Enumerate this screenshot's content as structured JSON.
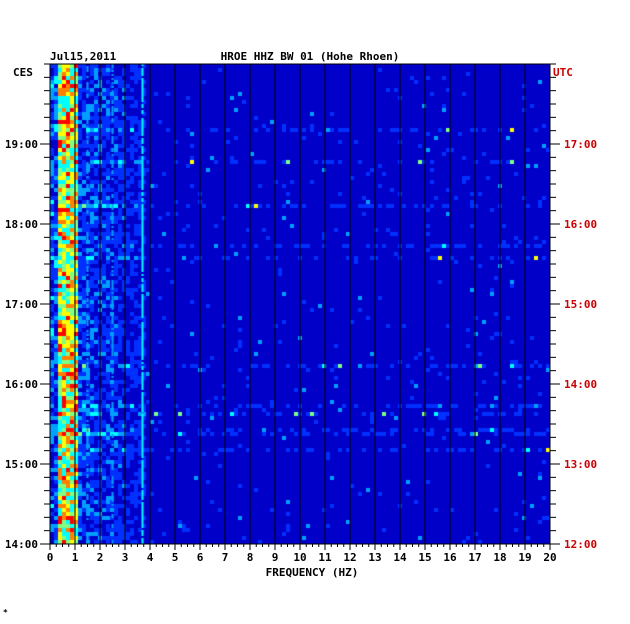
{
  "chart_data": {
    "type": "heatmap",
    "title": "HROE HHZ BW 01 (Hohe Rhoen)",
    "date": "Jul15,2011",
    "xlabel": "FREQUENCY (HZ)",
    "x_ticks": [
      "0",
      "1",
      "2",
      "3",
      "4",
      "5",
      "6",
      "7",
      "8",
      "9",
      "10",
      "11",
      "12",
      "13",
      "14",
      "15",
      "16",
      "17",
      "18",
      "19",
      "20"
    ],
    "xlim": [
      0,
      20
    ],
    "left_axis": {
      "label": "CES",
      "ticks": [
        {
          "label": "19:00",
          "time": 19
        },
        {
          "label": "18:00",
          "time": 18
        },
        {
          "label": "17:00",
          "time": 17
        },
        {
          "label": "16:00",
          "time": 16
        },
        {
          "label": "15:00",
          "time": 15
        },
        {
          "label": "14:00",
          "time": 14
        }
      ],
      "range": [
        14.0,
        20.0
      ]
    },
    "right_axis": {
      "label": "UTC",
      "ticks": [
        {
          "label": "17:00",
          "time": 17
        },
        {
          "label": "16:00",
          "time": 16
        },
        {
          "label": "15:00",
          "time": 15
        },
        {
          "label": "14:00",
          "time": 14
        },
        {
          "label": "13:00",
          "time": 13
        },
        {
          "label": "12:00",
          "time": 12
        }
      ],
      "range": [
        12.0,
        18.0
      ]
    },
    "colors": {
      "background": "#0000c8",
      "grid": "#000000",
      "utc_text": "#cc0000",
      "text": "#000000"
    },
    "colorscale": [
      "#0000c8",
      "#0030ff",
      "#00a0ff",
      "#00ffff",
      "#80ff80",
      "#ffff00",
      "#ff8000",
      "#ff0000"
    ],
    "features": [
      {
        "name": "microseism band",
        "f_low": 0.3,
        "f_high": 1.0,
        "level": "high"
      },
      {
        "name": "persistent line",
        "f": 3.7,
        "level": "medium"
      },
      {
        "name": "line",
        "f": 2.5,
        "level": "low"
      },
      {
        "name": "line",
        "f": 1.5,
        "level": "low"
      }
    ]
  },
  "footer_mark": "*"
}
